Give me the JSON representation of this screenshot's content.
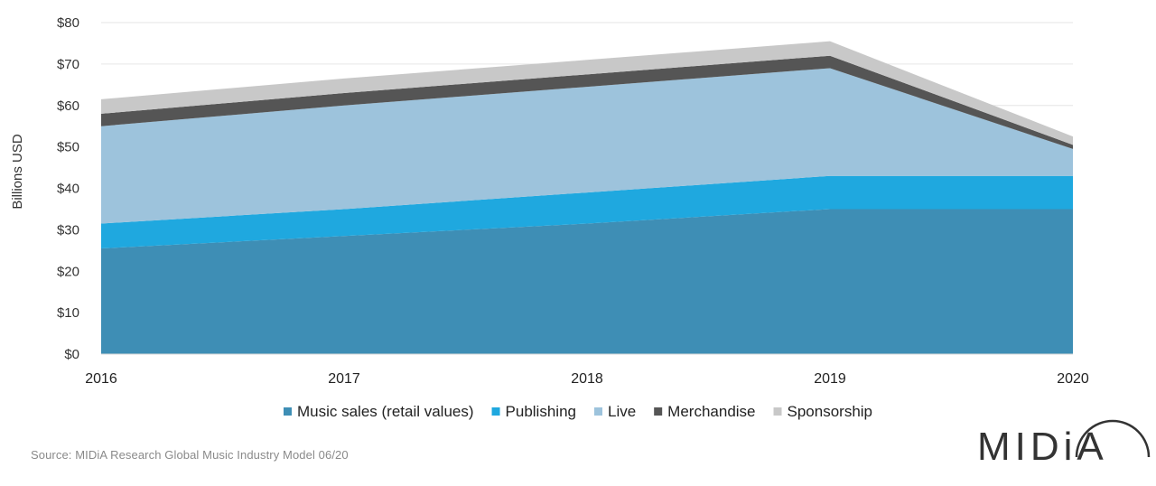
{
  "chart_data": {
    "type": "area",
    "stacked": true,
    "x": [
      "2016",
      "2017",
      "2018",
      "2019",
      "2020"
    ],
    "series": [
      {
        "name": "Music sales (retail values)",
        "color": "#3e8eb5",
        "values": [
          25.5,
          28.5,
          31.5,
          35,
          35
        ]
      },
      {
        "name": "Publishing",
        "color": "#1fa8df",
        "values": [
          6,
          6.5,
          7.5,
          8,
          8
        ]
      },
      {
        "name": "Live",
        "color": "#9dc3dc",
        "values": [
          23.5,
          25,
          25.5,
          26,
          6.5
        ]
      },
      {
        "name": "Merchandise",
        "color": "#555555",
        "values": [
          3,
          3,
          3,
          3,
          1
        ]
      },
      {
        "name": "Sponsorship",
        "color": "#c8c8c8",
        "values": [
          3.5,
          3.5,
          3.5,
          3.5,
          2
        ]
      }
    ],
    "ylim": [
      0,
      80
    ],
    "yticks": [
      "$0",
      "$10",
      "$20",
      "$30",
      "$40",
      "$50",
      "$60",
      "$70",
      "$80"
    ],
    "ylabel": "Billions USD",
    "xlabel": "",
    "grid": true,
    "legend_position": "bottom"
  },
  "footer": {
    "source": "Source: MIDiA Research Global Music Industry Model 06/20",
    "logo": "MIDiA"
  }
}
